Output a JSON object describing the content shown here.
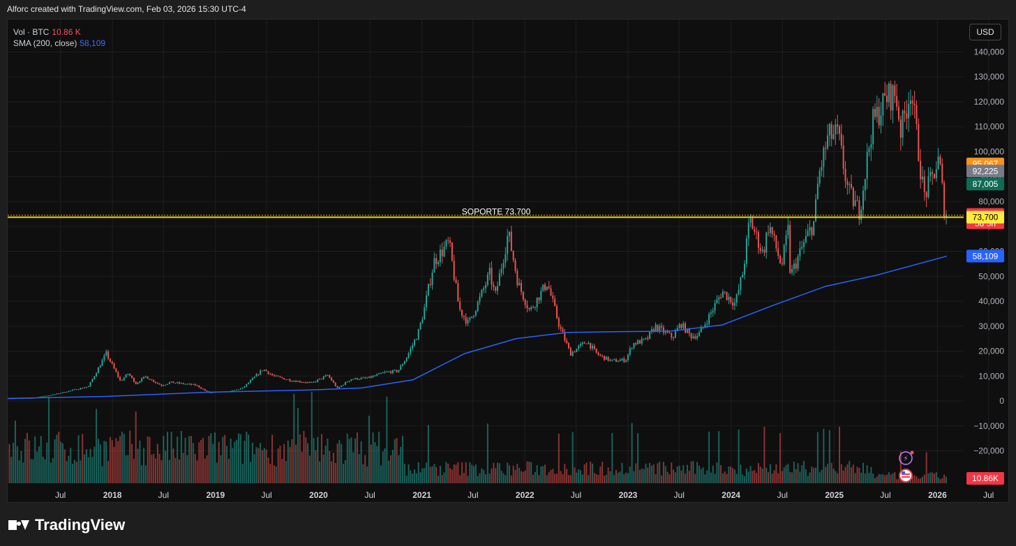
{
  "header": {
    "caption": "Alforc created with TradingView.com, Feb 03, 2026 15:30 UTC-4"
  },
  "legend": {
    "vol_label": "Vol · BTC",
    "vol_value": "10.86 K",
    "sma_label": "SMA (200, close)",
    "sma_value": "58,109"
  },
  "toolbar": {
    "currency": "USD"
  },
  "footer": {
    "brand": "TradingView"
  },
  "colors": {
    "up": "#26a69a",
    "down": "#ef5350",
    "sma": "#2962ff",
    "support": "#f5d90a",
    "bg": "#0f0f0f",
    "grid": "#1f1f1f"
  },
  "chart_data": {
    "type": "candlestick",
    "title": "",
    "y_axis": {
      "ticks": [
        -20000,
        -10000,
        0,
        10000,
        20000,
        30000,
        40000,
        50000,
        60000,
        70000,
        80000,
        90000,
        100000,
        110000,
        120000,
        130000,
        140000
      ],
      "tick_labels": [
        "−20,000",
        "−10,000",
        "0",
        "10,000",
        "20,000",
        "30,000",
        "40,000",
        "50,000",
        "60,000",
        "70,000",
        "80,000",
        "90,000",
        "100,000",
        "110,000",
        "120,000",
        "130,000",
        "140,000"
      ],
      "range": [
        -33000,
        153000
      ]
    },
    "x_axis": {
      "range": [
        "2016-12-26",
        "2026-09-14"
      ],
      "ticks": [
        {
          "date": "2017-07-01",
          "label": "Jul"
        },
        {
          "date": "2018-01-01",
          "label": "2018",
          "bold": true
        },
        {
          "date": "2018-07-01",
          "label": "Jul"
        },
        {
          "date": "2019-01-01",
          "label": "2019",
          "bold": true
        },
        {
          "date": "2019-07-01",
          "label": "Jul"
        },
        {
          "date": "2020-01-01",
          "label": "2020",
          "bold": true
        },
        {
          "date": "2020-07-01",
          "label": "Jul"
        },
        {
          "date": "2021-01-01",
          "label": "2021",
          "bold": true
        },
        {
          "date": "2021-07-01",
          "label": "Jul"
        },
        {
          "date": "2022-01-01",
          "label": "2022",
          "bold": true
        },
        {
          "date": "2022-07-01",
          "label": "Jul"
        },
        {
          "date": "2023-01-01",
          "label": "2023",
          "bold": true
        },
        {
          "date": "2023-07-01",
          "label": "Jul"
        },
        {
          "date": "2024-01-01",
          "label": "2024",
          "bold": true
        },
        {
          "date": "2024-07-01",
          "label": "Jul"
        },
        {
          "date": "2025-01-01",
          "label": "2025",
          "bold": true
        },
        {
          "date": "2025-07-01",
          "label": "Jul"
        },
        {
          "date": "2026-01-01",
          "label": "2026",
          "bold": true
        },
        {
          "date": "2026-07-01",
          "label": "Jul"
        }
      ]
    },
    "price_path": [
      [
        "2017-01-01",
        1000
      ],
      [
        "2017-04-01",
        1200
      ],
      [
        "2017-06-15",
        2600
      ],
      [
        "2017-08-15",
        4200
      ],
      [
        "2017-10-15",
        5800
      ],
      [
        "2017-12-17",
        19000
      ],
      [
        "2018-02-05",
        8000
      ],
      [
        "2018-03-05",
        11000
      ],
      [
        "2018-04-01",
        7000
      ],
      [
        "2018-05-05",
        9800
      ],
      [
        "2018-07-01",
        6200
      ],
      [
        "2018-08-01",
        7500
      ],
      [
        "2018-11-01",
        6300
      ],
      [
        "2018-12-15",
        3300
      ],
      [
        "2019-03-01",
        3800
      ],
      [
        "2019-04-15",
        5200
      ],
      [
        "2019-06-26",
        12800
      ],
      [
        "2019-08-01",
        10000
      ],
      [
        "2019-10-01",
        8300
      ],
      [
        "2019-12-15",
        7200
      ],
      [
        "2020-02-10",
        10300
      ],
      [
        "2020-03-15",
        5000
      ],
      [
        "2020-05-01",
        8800
      ],
      [
        "2020-07-01",
        9200
      ],
      [
        "2020-09-01",
        11500
      ],
      [
        "2020-10-15",
        12000
      ],
      [
        "2020-11-15",
        17500
      ],
      [
        "2020-12-25",
        27000
      ],
      [
        "2021-01-15",
        36000
      ],
      [
        "2021-02-20",
        56000
      ],
      [
        "2021-04-14",
        63500
      ],
      [
        "2021-05-20",
        37000
      ],
      [
        "2021-06-22",
        31000
      ],
      [
        "2021-08-01",
        41000
      ],
      [
        "2021-09-05",
        51000
      ],
      [
        "2021-09-25",
        42000
      ],
      [
        "2021-11-10",
        67500
      ],
      [
        "2021-12-15",
        47000
      ],
      [
        "2022-01-25",
        36000
      ],
      [
        "2022-03-28",
        47500
      ],
      [
        "2022-05-10",
        30000
      ],
      [
        "2022-06-18",
        19000
      ],
      [
        "2022-08-15",
        24000
      ],
      [
        "2022-09-20",
        18800
      ],
      [
        "2022-11-10",
        16000
      ],
      [
        "2022-12-31",
        16500
      ],
      [
        "2023-01-25",
        23000
      ],
      [
        "2023-03-15",
        24500
      ],
      [
        "2023-04-14",
        30000
      ],
      [
        "2023-06-15",
        25500
      ],
      [
        "2023-07-14",
        31000
      ],
      [
        "2023-08-18",
        26000
      ],
      [
        "2023-09-15",
        26500
      ],
      [
        "2023-10-25",
        34500
      ],
      [
        "2023-12-08",
        44000
      ],
      [
        "2024-01-23",
        39000
      ],
      [
        "2024-02-20",
        52000
      ],
      [
        "2024-03-14",
        73000
      ],
      [
        "2024-04-30",
        59000
      ],
      [
        "2024-05-21",
        71000
      ],
      [
        "2024-07-05",
        54000
      ],
      [
        "2024-07-29",
        69000
      ],
      [
        "2024-08-05",
        50000
      ],
      [
        "2024-09-25",
        64000
      ],
      [
        "2024-10-29",
        72000
      ],
      [
        "2024-11-13",
        90000
      ],
      [
        "2024-12-17",
        106000
      ],
      [
        "2025-01-20",
        107000
      ],
      [
        "2025-02-26",
        84000
      ],
      [
        "2025-04-07",
        76000
      ],
      [
        "2025-05-22",
        111000
      ],
      [
        "2025-07-14",
        122000
      ],
      [
        "2025-08-14",
        123000
      ],
      [
        "2025-09-01",
        108000
      ],
      [
        "2025-10-06",
        126000
      ],
      [
        "2025-11-21",
        82000
      ],
      [
        "2025-12-15",
        88000
      ],
      [
        "2026-01-14",
        97000
      ],
      [
        "2026-02-03",
        74839
      ]
    ],
    "sma_200": [
      [
        "2016-12-26",
        1000
      ],
      [
        "2017-12-01",
        1800
      ],
      [
        "2018-12-01",
        3500
      ],
      [
        "2019-12-01",
        4400
      ],
      [
        "2020-06-01",
        5200
      ],
      [
        "2020-12-01",
        8500
      ],
      [
        "2021-06-01",
        19000
      ],
      [
        "2021-12-01",
        25000
      ],
      [
        "2022-06-01",
        27500
      ],
      [
        "2022-12-01",
        27800
      ],
      [
        "2023-06-01",
        28000
      ],
      [
        "2023-12-01",
        30500
      ],
      [
        "2024-06-01",
        38500
      ],
      [
        "2024-12-01",
        46000
      ],
      [
        "2025-06-01",
        50500
      ],
      [
        "2026-02-03",
        58109
      ]
    ],
    "support_line": {
      "label": "SOPORTE 73.700",
      "value": 73700
    },
    "volume_last": "10.86K",
    "price_labels": [
      {
        "value": 95067,
        "text": "95,067",
        "color": "#f7931a",
        "text_color": "#ffffff"
      },
      {
        "value": 92225,
        "text": "92,225",
        "color": "#787b86",
        "text_color": "#ffffff"
      },
      {
        "value": 87005,
        "text": "87,005",
        "color": "#0f6b55",
        "text_color": "#ffffff"
      },
      {
        "value": 74839,
        "text": "74,839",
        "sub": "5d 5h",
        "color": "#f23645",
        "text_color": "#ffffff"
      },
      {
        "value": 73700,
        "text": "73,700",
        "color": "#ffeb3b",
        "text_color": "#000000"
      },
      {
        "value": 58109,
        "text": "58,109",
        "color": "#2962ff",
        "text_color": "#ffffff"
      }
    ]
  }
}
